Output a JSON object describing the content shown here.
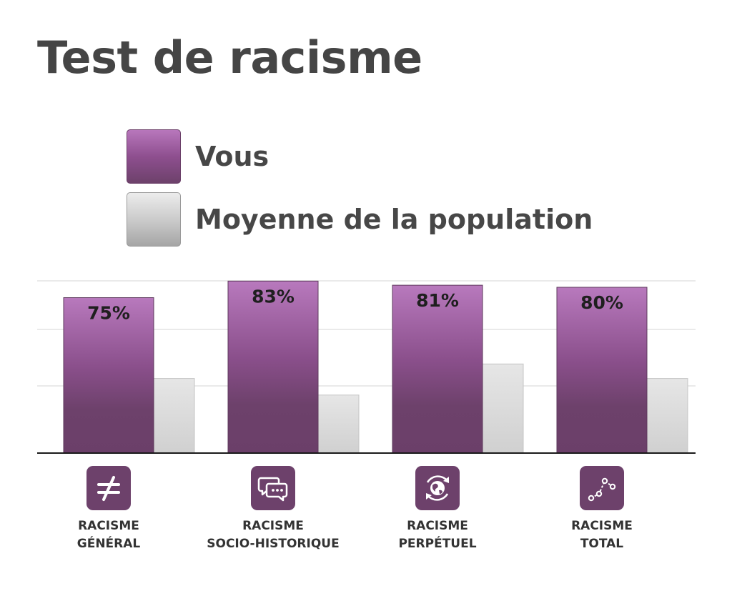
{
  "chart_data": {
    "type": "bar",
    "title": "Test de racisme",
    "xlabel": "",
    "ylabel": "",
    "ylim": [
      0,
      100
    ],
    "grid": true,
    "legend_position": "top",
    "categories": [
      {
        "line1": "RACISME",
        "line2": "GÉNÉRAL",
        "icon": "not-equal-icon"
      },
      {
        "line1": "RACISME",
        "line2": "SOCIO-HISTORIQUE",
        "icon": "chat-bubbles-icon"
      },
      {
        "line1": "RACISME",
        "line2": "PERPÉTUEL",
        "icon": "globe-cycle-icon"
      },
      {
        "line1": "RACISME",
        "line2": "TOTAL",
        "icon": "network-graph-icon"
      }
    ],
    "series": [
      {
        "name": "Vous",
        "values": [
          75,
          83,
          81,
          80
        ],
        "labels": [
          "75%",
          "83%",
          "81%",
          "80%"
        ],
        "color": "#7a4777"
      },
      {
        "name": "Moyenne de la population",
        "values": [
          36,
          28,
          43,
          36
        ],
        "color": "#d4d4d4"
      }
    ]
  }
}
